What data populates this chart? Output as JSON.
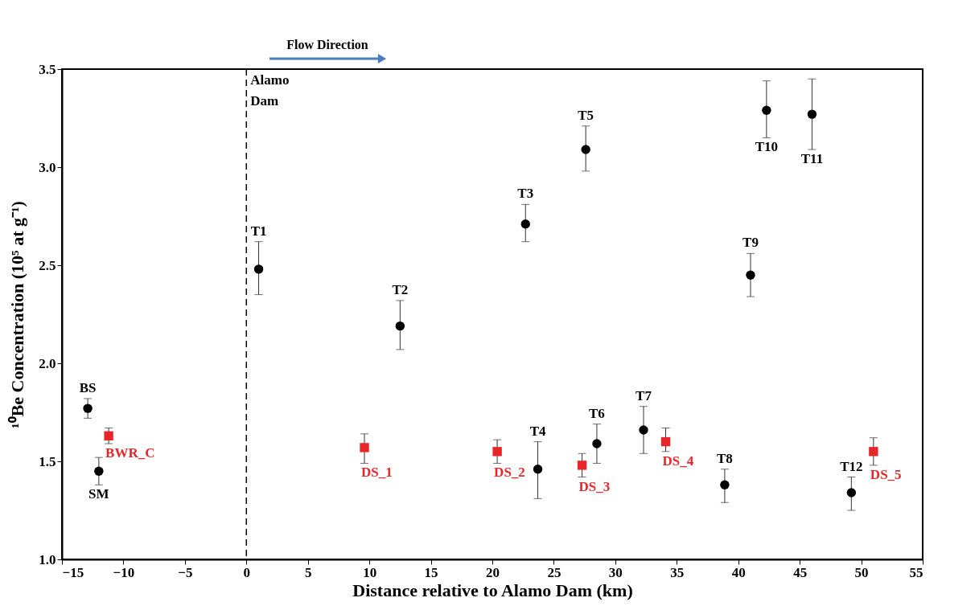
{
  "chart_data": {
    "type": "scatter",
    "xlabel": "Distance relative to Alamo Dam (km)",
    "ylabel": "¹⁰Be Concentration (10⁵ at g⁻¹)",
    "xlim": [
      -15,
      55
    ],
    "xticks": [
      -15,
      -10,
      -5,
      0,
      5,
      10,
      15,
      20,
      25,
      30,
      35,
      40,
      45,
      50,
      55
    ],
    "ylim": [
      1.0,
      3.5
    ],
    "yticks": [
      {
        "value": 1.0,
        "label": "1.0"
      },
      {
        "value": 1.5,
        "label": "1.5"
      },
      {
        "value": 2.0,
        "label": "2.0"
      },
      {
        "value": 2.5,
        "label": "2.5"
      },
      {
        "value": 3.0,
        "label": "3.0"
      },
      {
        "value": 3.5,
        "label": "3.5"
      }
    ],
    "grid": false,
    "series": [
      {
        "color": "#000000",
        "marker": "circle",
        "x": [
          -12.9,
          -12.0,
          1.0,
          12.5,
          22.7,
          23.7,
          27.6,
          28.5,
          32.3,
          38.9,
          41.0,
          42.3,
          46.0,
          49.2
        ],
        "values": [
          1.77,
          1.45,
          2.48,
          2.19,
          2.71,
          1.46,
          3.09,
          1.59,
          1.66,
          1.38,
          2.45,
          3.29,
          3.27,
          1.34
        ],
        "errors": [
          [
            1.72,
            1.82
          ],
          [
            1.38,
            1.52
          ],
          [
            2.35,
            2.62
          ],
          [
            2.07,
            2.32
          ],
          [
            2.62,
            2.81
          ],
          [
            1.31,
            1.6
          ],
          [
            2.98,
            3.21
          ],
          [
            1.49,
            1.69
          ],
          [
            1.54,
            1.78
          ],
          [
            1.29,
            1.46
          ],
          [
            2.34,
            2.56
          ],
          [
            3.15,
            3.44
          ],
          [
            3.09,
            3.45
          ],
          [
            1.25,
            1.42
          ]
        ]
      },
      {
        "color": "#e8262a",
        "marker": "square",
        "x": [
          -11.2,
          9.6,
          20.4,
          27.3,
          34.1,
          51.0
        ],
        "values": [
          1.63,
          1.57,
          1.55,
          1.48,
          1.6,
          1.55
        ],
        "errors": [
          [
            1.59,
            1.67
          ],
          [
            1.49,
            1.64
          ],
          [
            1.49,
            1.61
          ],
          [
            1.42,
            1.54
          ],
          [
            1.55,
            1.67
          ],
          [
            1.48,
            1.62
          ]
        ]
      }
    ],
    "ref_lines": [
      {
        "axis": "x",
        "value": 0,
        "label": "Alamo Dam",
        "color": "#000000",
        "line_style": "dashed"
      }
    ],
    "annotations": [
      "Flow Direction",
      {
        "text": "BS",
        "x": -12.9,
        "y": 1.77
      },
      {
        "text": "SM",
        "x": -12.0,
        "y": 1.45
      },
      {
        "text": "T1",
        "x": 1.0,
        "y": 2.48
      },
      {
        "text": "T2",
        "x": 12.5,
        "y": 2.19
      },
      {
        "text": "T3",
        "x": 22.7,
        "y": 2.71
      },
      {
        "text": "T4",
        "x": 23.7,
        "y": 1.46
      },
      {
        "text": "T5",
        "x": 27.6,
        "y": 3.09
      },
      {
        "text": "T6",
        "x": 28.5,
        "y": 1.59
      },
      {
        "text": "T7",
        "x": 32.3,
        "y": 1.66
      },
      {
        "text": "T8",
        "x": 38.9,
        "y": 1.38
      },
      {
        "text": "T9",
        "x": 41.0,
        "y": 2.45
      },
      {
        "text": "T10",
        "x": 42.3,
        "y": 3.29
      },
      {
        "text": "T11",
        "x": 46.0,
        "y": 3.27
      },
      {
        "text": "T12",
        "x": 49.2,
        "y": 1.34
      },
      {
        "text": "BWR_C",
        "x": -11.2,
        "y": 1.63
      },
      {
        "text": "DS_1",
        "x": 9.6,
        "y": 1.57
      },
      {
        "text": "DS_2",
        "x": 20.4,
        "y": 1.55
      },
      {
        "text": "DS_3",
        "x": 27.3,
        "y": 1.48
      },
      {
        "text": "DS_4",
        "x": 34.1,
        "y": 1.6
      },
      {
        "text": "DS_5",
        "x": 51.0,
        "y": 1.55
      }
    ]
  }
}
